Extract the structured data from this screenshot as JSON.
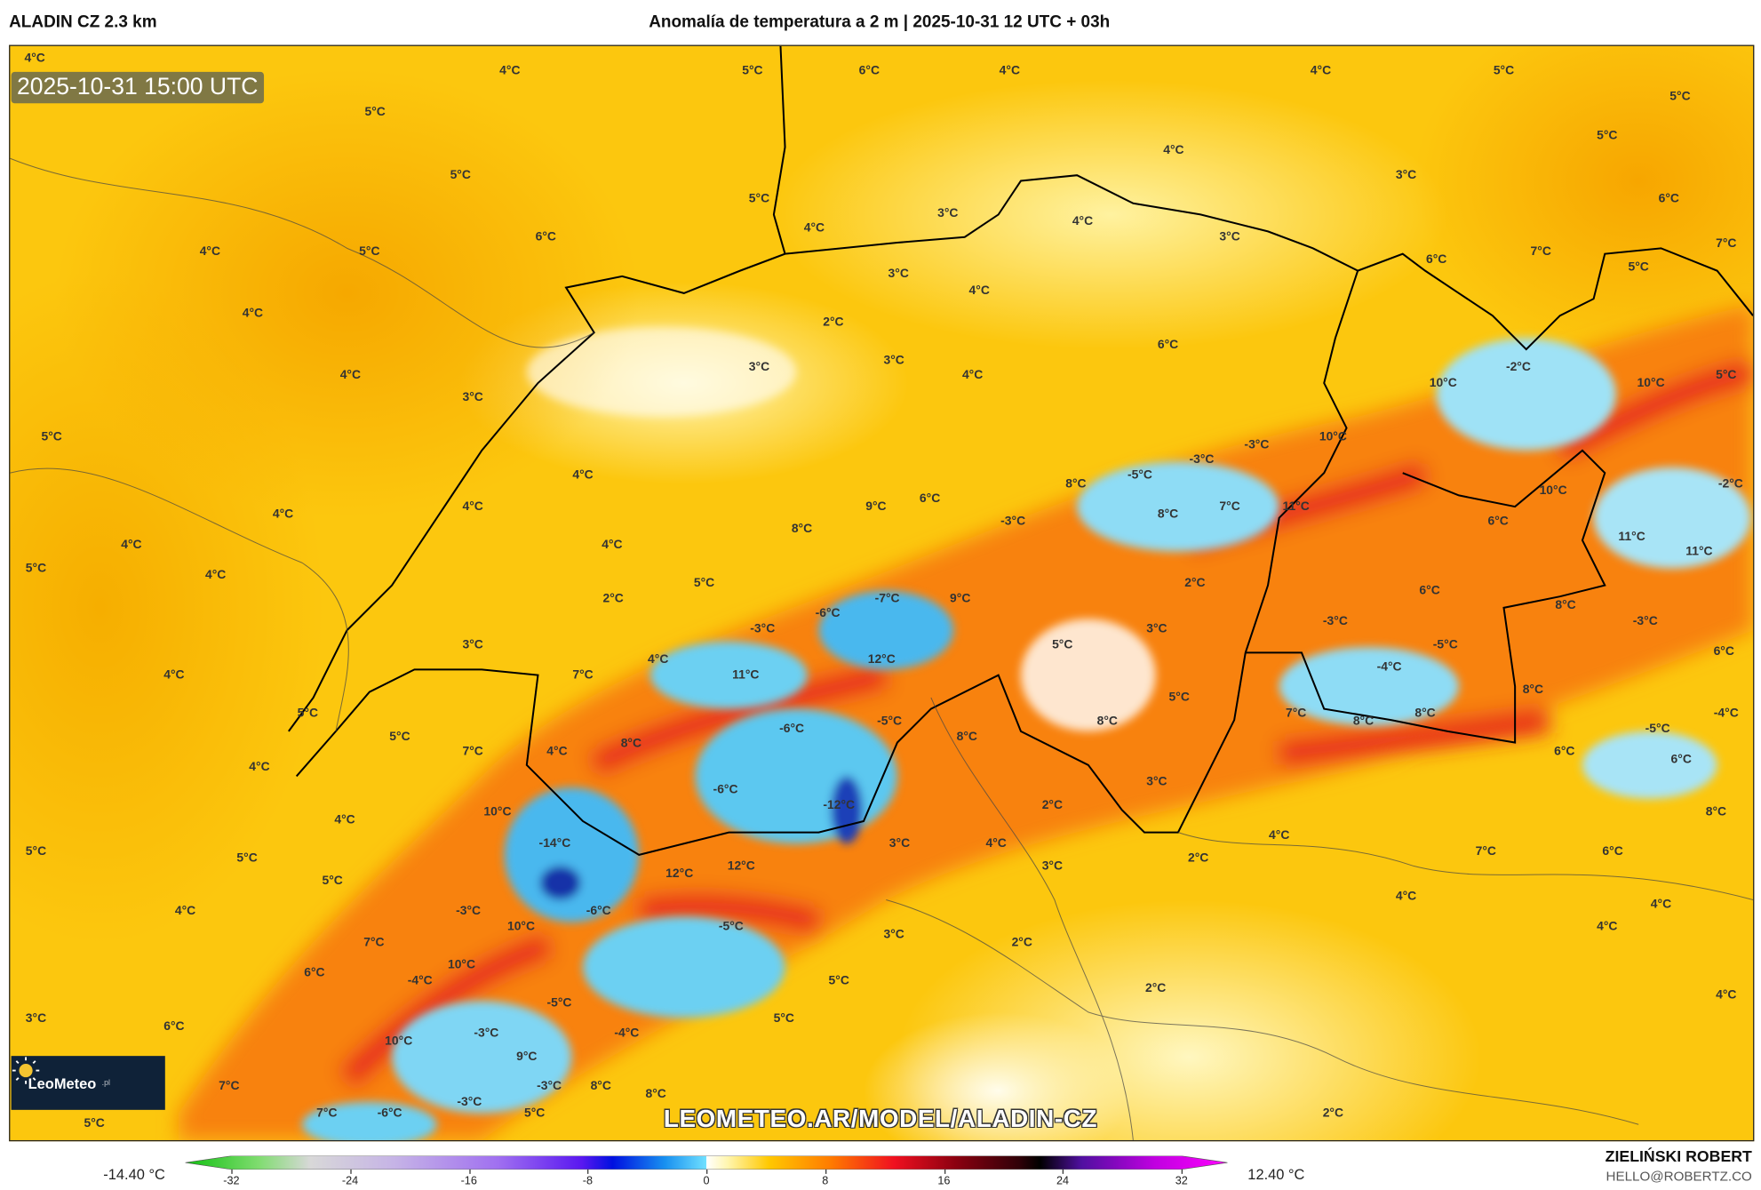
{
  "header": {
    "model": "ALADIN CZ 2.3 km",
    "title": "Anomalía de temperatura a 2 m | 2025-10-31 12 UTC + 03h"
  },
  "map": {
    "valid_time": "2025-10-31 15:00 UTC",
    "watermark": "LEOMETEO.AR/MODEL/ALADIN-CZ",
    "logo_text": "LeoMeteo",
    "logo_suffix": ".pl",
    "contour_labels": [
      "4°C",
      "4°C",
      "5°C",
      "6°C",
      "4°C",
      "4°C",
      "5°C",
      "5°C",
      "5°C",
      "5°C",
      "4°C",
      "5°C",
      "3°C",
      "5°C",
      "6°C",
      "3°C",
      "4°C",
      "4°C",
      "6°C",
      "3°C",
      "7°C",
      "4°C",
      "5°C",
      "7°C",
      "6°C",
      "5°C",
      "3°C",
      "4°C",
      "4°C",
      "2°C",
      "6°C",
      "3°C",
      "3°C",
      "4°C",
      "4°C",
      "-2°C",
      "5°C",
      "10°C",
      "10°C",
      "3°C",
      "5°C",
      "10°C",
      "-3°C",
      "-3°C",
      "4°C",
      "-5°C",
      "8°C",
      "10°C",
      "-2°C",
      "4°C",
      "6°C",
      "9°C",
      "7°C",
      "11°C",
      "8°C",
      "4°C",
      "-3°C",
      "6°C",
      "8°C",
      "11°C",
      "11°C",
      "4°C",
      "4°C",
      "5°C",
      "4°C",
      "5°C",
      "2°C",
      "-7°C",
      "9°C",
      "2°C",
      "6°C",
      "8°C",
      "-6°C",
      "-3°C",
      "-3°C",
      "-3°C",
      "3°C",
      "5°C",
      "-5°C",
      "3°C",
      "6°C",
      "4°C",
      "12°C",
      "4°C",
      "7°C",
      "11°C",
      "-4°C",
      "8°C",
      "5°C",
      "5°C",
      "-5°C",
      "8°C",
      "7°C",
      "8°C",
      "8°C",
      "-4°C",
      "-6°C",
      "-5°C",
      "5°C",
      "8°C",
      "8°C",
      "7°C",
      "4°C",
      "6°C",
      "6°C",
      "4°C",
      "3°C",
      "-6°C",
      "-12°C",
      "2°C",
      "10°C",
      "8°C",
      "4°C",
      "4°C",
      "3°C",
      "4°C",
      "-14°C",
      "5°C",
      "7°C",
      "6°C",
      "2°C",
      "5°C",
      "3°C",
      "12°C",
      "12°C",
      "5°C",
      "4°C",
      "4°C",
      "4°C",
      "-3°C",
      "-6°C",
      "10°C",
      "-5°C",
      "4°C",
      "3°C",
      "7°C",
      "2°C",
      "10°C",
      "6°C",
      "-4°C",
      "5°C",
      "2°C",
      "-5°C",
      "4°C",
      "3°C",
      "5°C",
      "6°C",
      "-3°C",
      "-4°C",
      "10°C",
      "9°C",
      "7°C",
      "-3°C",
      "8°C",
      "8°C",
      "2°C",
      "5°C",
      "7°C",
      "-6°C",
      "-3°C",
      "5°C"
    ]
  },
  "colorbar": {
    "min_label": "-14.40 °C",
    "max_label": "12.40 °C",
    "ticks": [
      "-32",
      "-24",
      "-16",
      "-8",
      "0",
      "8",
      "16",
      "24",
      "32"
    ]
  },
  "credits": {
    "author": "ZIELIŃSKI ROBERT",
    "email": "HELLO@ROBERTZ.CO"
  }
}
